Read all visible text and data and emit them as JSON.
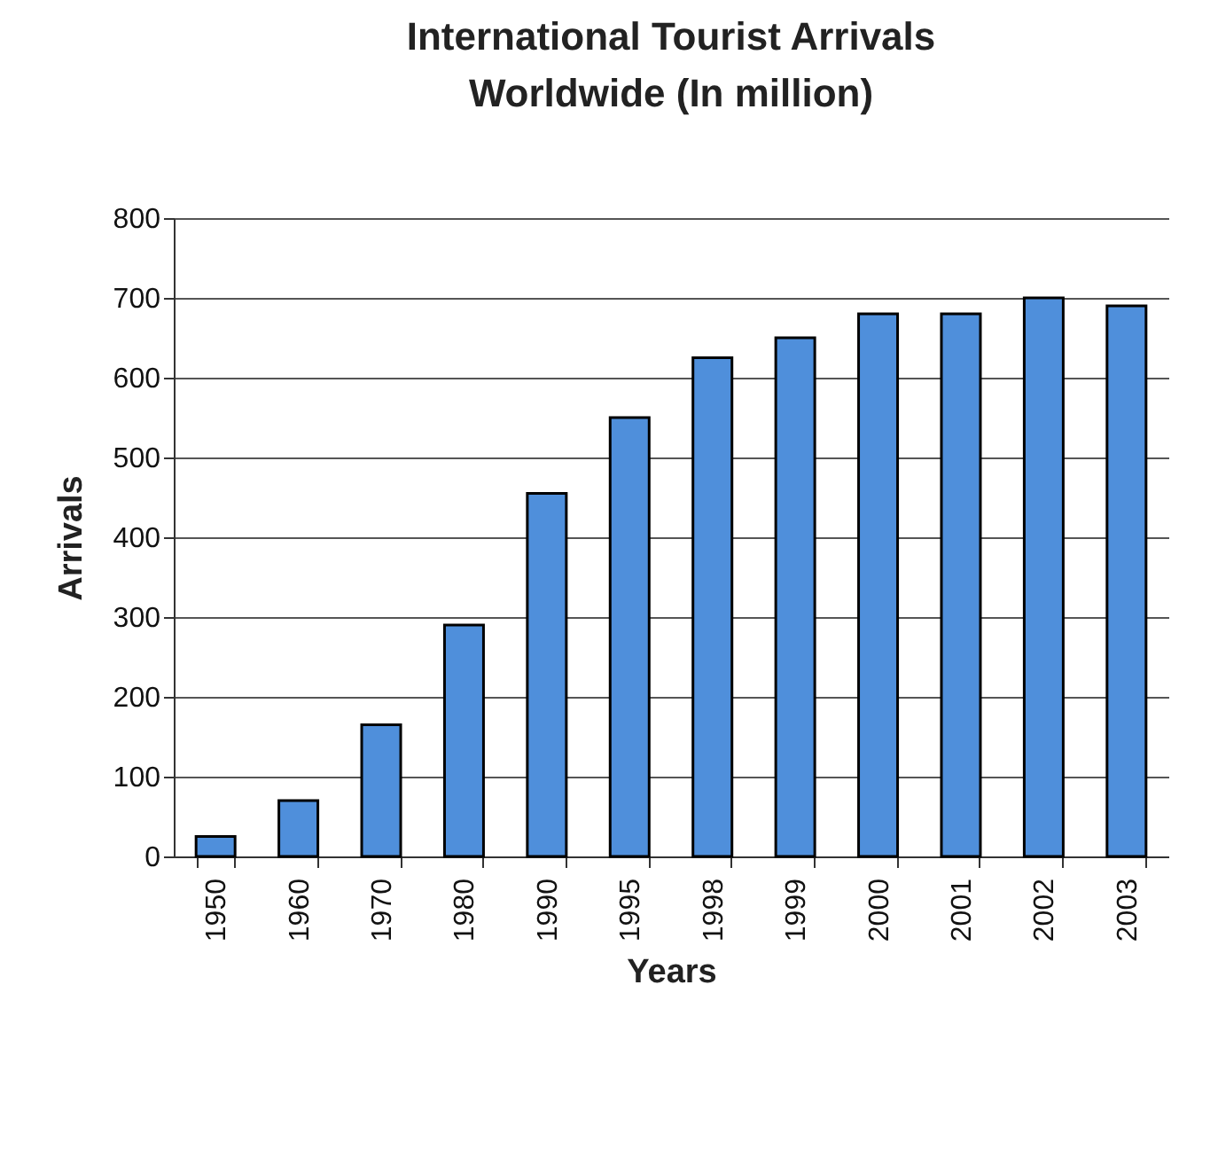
{
  "chart_data": {
    "type": "bar",
    "title": [
      "International Tourist Arrivals",
      "Worldwide (In million)"
    ],
    "xlabel": "Years",
    "ylabel": "Arrivals",
    "categories": [
      "1950",
      "1960",
      "1970",
      "1980",
      "1990",
      "1995",
      "1998",
      "1999",
      "2000",
      "2001",
      "2002",
      "2003"
    ],
    "values": [
      25,
      70,
      165,
      290,
      455,
      550,
      625,
      650,
      680,
      680,
      700,
      690
    ],
    "color": "#4f8fdb",
    "ylim": [
      0,
      800
    ],
    "yticks": [
      0,
      100,
      200,
      300,
      400,
      500,
      600,
      700,
      800
    ],
    "grid": "y"
  }
}
